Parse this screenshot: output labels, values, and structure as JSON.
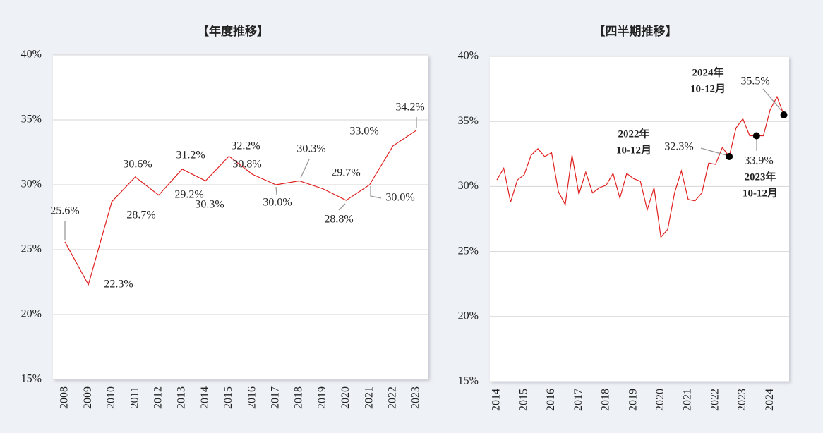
{
  "chart_data": [
    {
      "type": "line",
      "title": "【年度推移】",
      "categories": [
        "2008",
        "2009",
        "2010",
        "2011",
        "2012",
        "2013",
        "2014",
        "2015",
        "2016",
        "2017",
        "2018",
        "2019",
        "2020",
        "2021",
        "2022",
        "2023"
      ],
      "values": [
        25.6,
        22.3,
        28.7,
        30.6,
        29.2,
        31.2,
        30.3,
        32.2,
        30.8,
        30.0,
        30.3,
        29.7,
        28.8,
        30.0,
        33.0,
        34.2
      ],
      "value_labels": [
        "25.6%",
        "22.3%",
        "28.7%",
        "30.6%",
        "29.2%",
        "31.2%",
        "30.3%",
        "32.2%",
        "30.8%",
        "30.0%",
        "30.3%",
        "29.7%",
        "28.8%",
        "30.0%",
        "33.0%",
        "34.2%"
      ],
      "color": "#e02020",
      "ylim": [
        15,
        40
      ],
      "yticks": [
        {
          "value": 15,
          "label": "15%"
        },
        {
          "value": 20,
          "label": "20%"
        },
        {
          "value": 25,
          "label": "25%"
        },
        {
          "value": 30,
          "label": "30%"
        },
        {
          "value": 35,
          "label": "35%"
        },
        {
          "value": 40,
          "label": "40%"
        }
      ],
      "grid": true
    },
    {
      "type": "line",
      "title": "【四半期推移】",
      "categories": [
        "2014",
        null,
        null,
        null,
        "2015",
        null,
        null,
        null,
        "2016",
        null,
        null,
        null,
        "2017",
        null,
        null,
        null,
        "2018",
        null,
        null,
        null,
        "2019",
        null,
        null,
        null,
        "2020",
        null,
        null,
        null,
        "2021",
        null,
        null,
        null,
        "2022",
        null,
        null,
        null,
        "2023",
        null,
        null,
        null,
        "2024",
        null,
        null
      ],
      "values": [
        30.5,
        31.4,
        28.8,
        30.5,
        30.9,
        32.4,
        32.9,
        32.3,
        32.6,
        29.6,
        28.6,
        32.4,
        29.4,
        31.1,
        29.5,
        29.9,
        30.1,
        31.0,
        29.1,
        31.0,
        30.6,
        30.4,
        28.2,
        29.9,
        26.1,
        26.7,
        29.5,
        31.2,
        29.0,
        28.9,
        29.5,
        31.8,
        31.7,
        33.0,
        32.3,
        34.5,
        35.2,
        33.9,
        33.9,
        33.9,
        35.9,
        36.9,
        35.5
      ],
      "value_labels": [
        null,
        null,
        null,
        null,
        null,
        null,
        null,
        null,
        null,
        null,
        null,
        null,
        null,
        null,
        null,
        null,
        null,
        null,
        null,
        null,
        null,
        null,
        null,
        null,
        null,
        null,
        null,
        null,
        null,
        null,
        null,
        null,
        null,
        null,
        "32.3%",
        null,
        null,
        null,
        "33.9%",
        null,
        null,
        null,
        "35.5%"
      ],
      "annotations": [
        [
          "2022年",
          "10-12月"
        ],
        [
          "2023年",
          "10-12月"
        ],
        [
          "2024年",
          "10-12月"
        ]
      ],
      "color": "#e02020",
      "ylim": [
        15,
        40
      ],
      "yticks": [
        {
          "value": 15,
          "label": "15%"
        },
        {
          "value": 20,
          "label": "20%"
        },
        {
          "value": 25,
          "label": "25%"
        },
        {
          "value": 30,
          "label": "30%"
        },
        {
          "value": 35,
          "label": "35%"
        },
        {
          "value": 40,
          "label": "40%"
        }
      ],
      "grid": true
    }
  ]
}
